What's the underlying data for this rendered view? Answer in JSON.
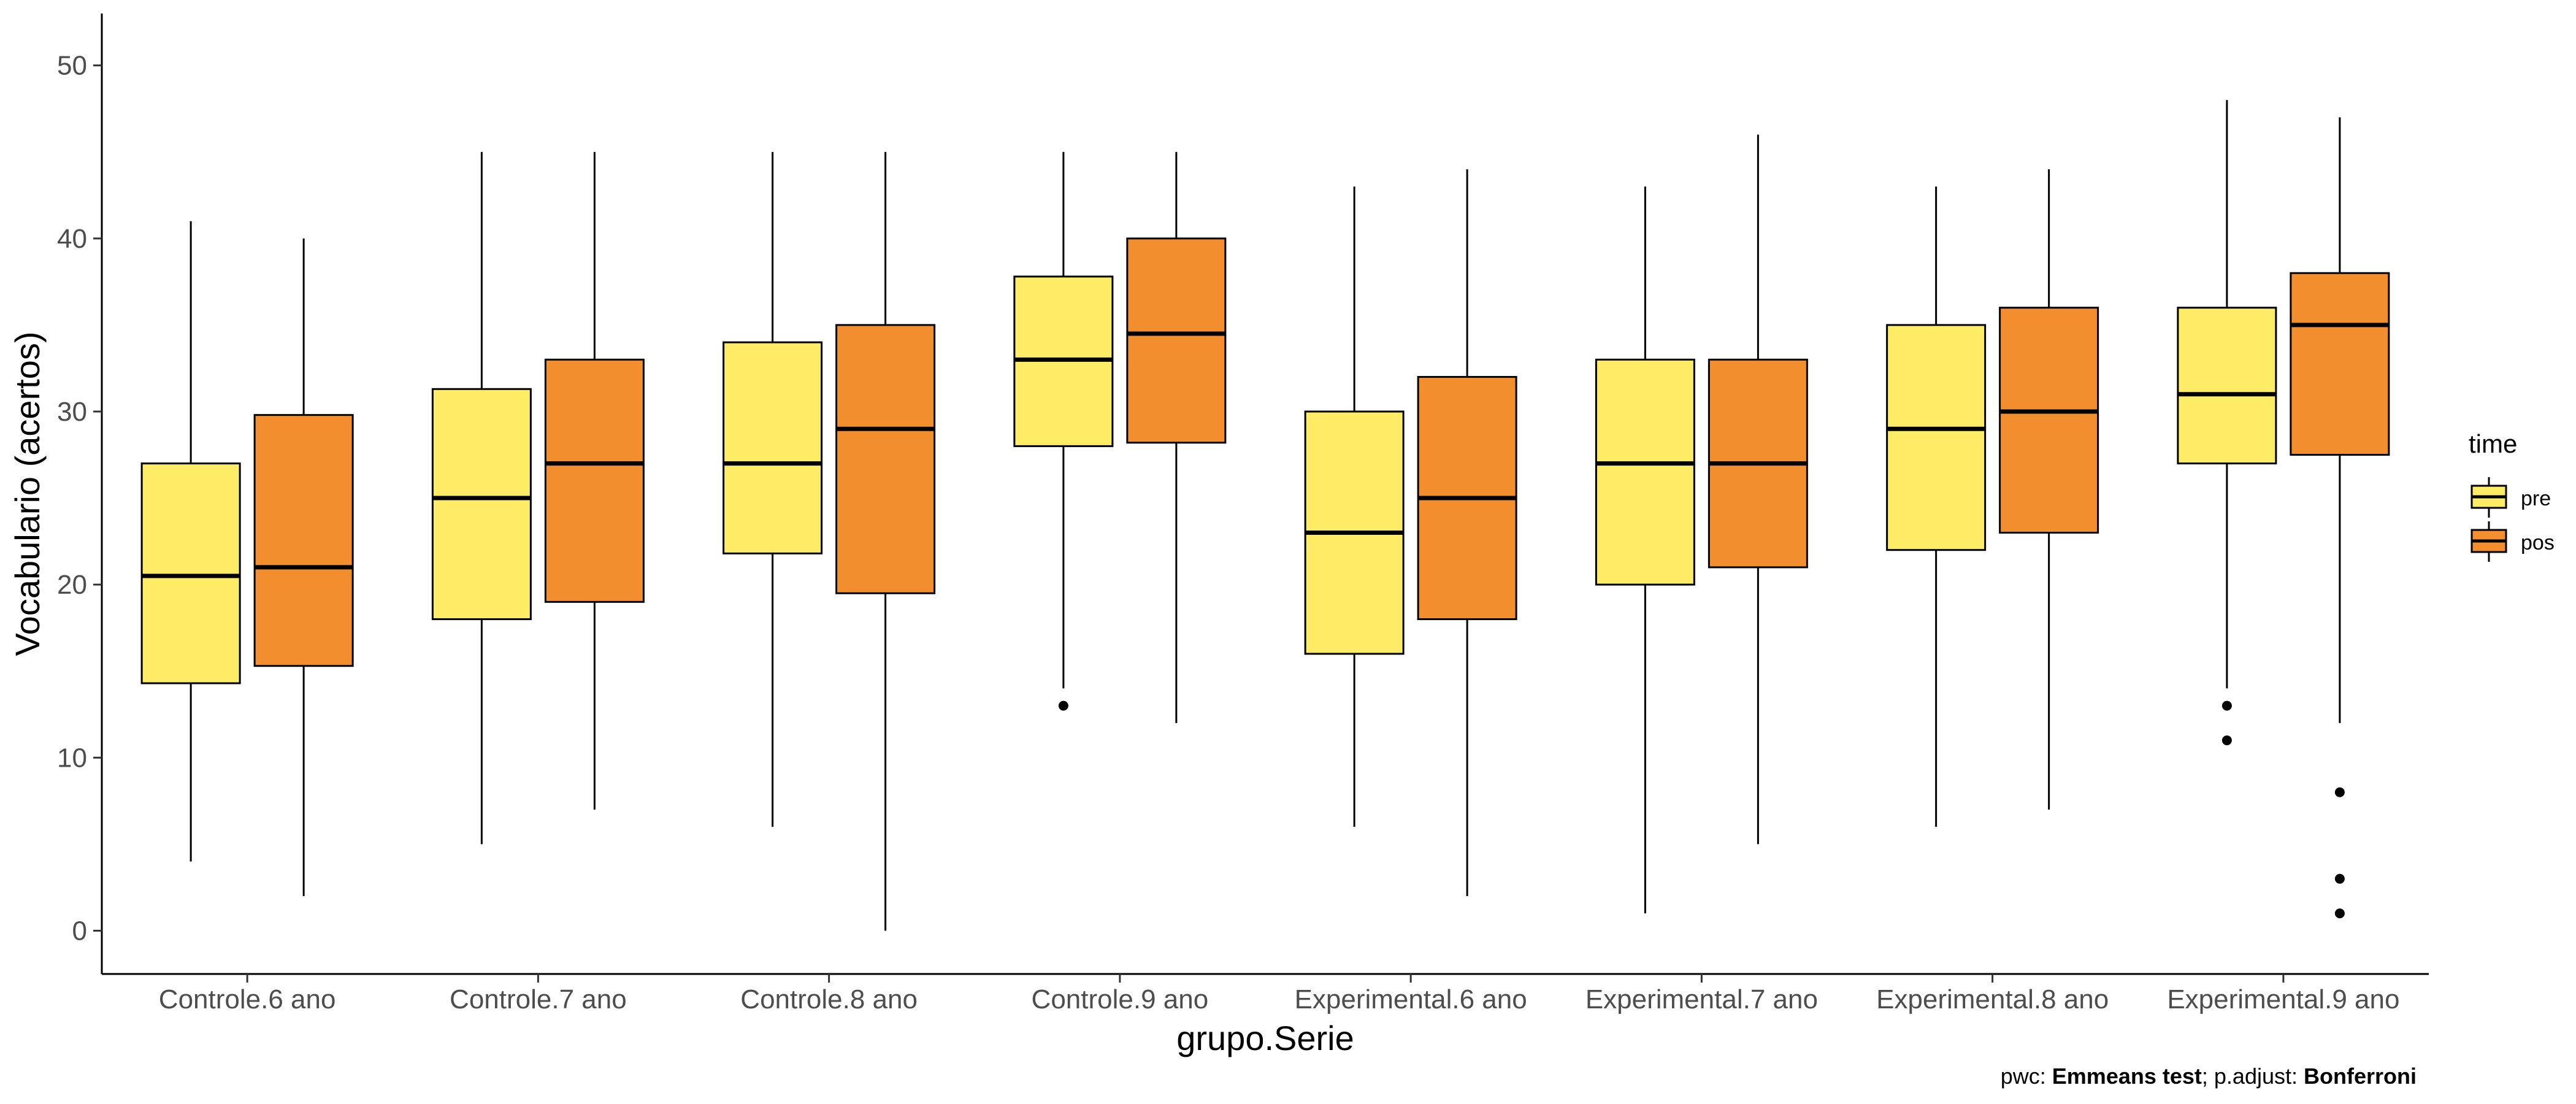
{
  "chart_data": {
    "type": "boxplot",
    "xlabel": "grupo.Serie",
    "ylabel": "Vocabulario (acertos)",
    "ylim": [
      -2.5,
      53
    ],
    "yticks": [
      0,
      10,
      20,
      30,
      40,
      50
    ],
    "grid": false,
    "legend": {
      "title": "time",
      "position": "right",
      "entries": [
        {
          "label": "pre",
          "color": "#FEEC66"
        },
        {
          "label": "pos",
          "color": "#F28E2E"
        }
      ]
    },
    "categories": [
      "Controle.6 ano",
      "Controle.7 ano",
      "Controle.8 ano",
      "Controle.9 ano",
      "Experimental.6 ano",
      "Experimental.7 ano",
      "Experimental.8 ano",
      "Experimental.9 ano"
    ],
    "series": [
      {
        "name": "pre",
        "color": "#FEEC66",
        "boxes": [
          {
            "min": 4,
            "q1": 14.3,
            "median": 20.5,
            "q3": 27,
            "max": 41,
            "outliers": []
          },
          {
            "min": 5,
            "q1": 18,
            "median": 25,
            "q3": 31.3,
            "max": 45,
            "outliers": []
          },
          {
            "min": 6,
            "q1": 21.8,
            "median": 27,
            "q3": 34,
            "max": 45,
            "outliers": []
          },
          {
            "min": 14,
            "q1": 28,
            "median": 33,
            "q3": 37.8,
            "max": 45,
            "outliers": [
              13
            ]
          },
          {
            "min": 6,
            "q1": 16,
            "median": 23,
            "q3": 30,
            "max": 43,
            "outliers": []
          },
          {
            "min": 1,
            "q1": 20,
            "median": 27,
            "q3": 33,
            "max": 43,
            "outliers": []
          },
          {
            "min": 6,
            "q1": 22,
            "median": 29,
            "q3": 35,
            "max": 43,
            "outliers": []
          },
          {
            "min": 14,
            "q1": 27,
            "median": 31,
            "q3": 36,
            "max": 48,
            "outliers": [
              13,
              11
            ]
          }
        ]
      },
      {
        "name": "pos",
        "color": "#F28E2E",
        "boxes": [
          {
            "min": 2,
            "q1": 15.3,
            "median": 21,
            "q3": 29.8,
            "max": 40,
            "outliers": []
          },
          {
            "min": 7,
            "q1": 19,
            "median": 27,
            "q3": 33,
            "max": 45,
            "outliers": []
          },
          {
            "min": 0,
            "q1": 19.5,
            "median": 29,
            "q3": 35,
            "max": 45,
            "outliers": []
          },
          {
            "min": 12,
            "q1": 28.2,
            "median": 34.5,
            "q3": 40,
            "max": 45,
            "outliers": []
          },
          {
            "min": 2,
            "q1": 18,
            "median": 25,
            "q3": 32,
            "max": 44,
            "outliers": []
          },
          {
            "min": 5,
            "q1": 21,
            "median": 27,
            "q3": 33,
            "max": 46,
            "outliers": []
          },
          {
            "min": 7,
            "q1": 23,
            "median": 30,
            "q3": 36,
            "max": 44,
            "outliers": []
          },
          {
            "min": 12,
            "q1": 27.5,
            "median": 35,
            "q3": 38,
            "max": 47,
            "outliers": [
              8,
              3,
              1
            ]
          }
        ]
      }
    ],
    "caption": {
      "pwc_label": "pwc: ",
      "pwc_value": "Emmeans test",
      "sep": "; p.adjust: ",
      "adjust_value": "Bonferroni"
    }
  }
}
